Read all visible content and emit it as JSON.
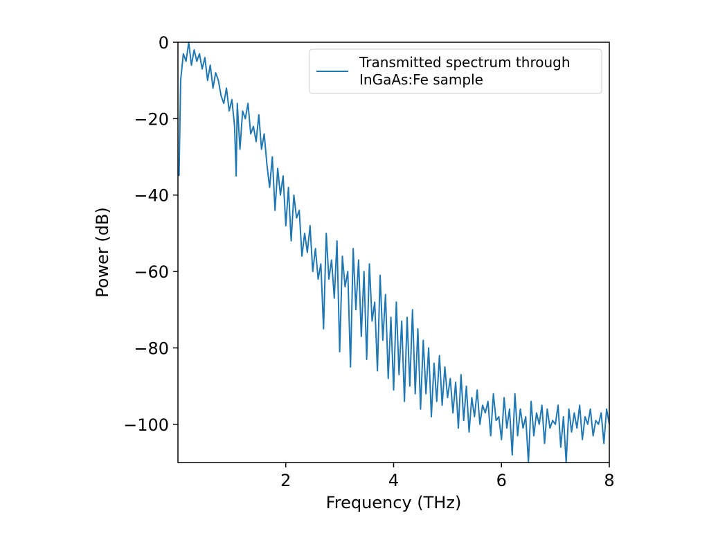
{
  "chart_data": {
    "type": "line",
    "title": "",
    "xlabel": "Frequency (THz)",
    "ylabel": "Power (dB)",
    "xlim": [
      0.0,
      8.0
    ],
    "ylim": [
      -110,
      0
    ],
    "x_ticks": [
      2,
      4,
      6,
      8
    ],
    "x_tick_labels": [
      "2",
      "4",
      "6",
      "8"
    ],
    "y_ticks": [
      0,
      -20,
      -40,
      -60,
      -80,
      -100
    ],
    "y_tick_labels": [
      "0",
      "−20",
      "−40",
      "−60",
      "−80",
      "−100"
    ],
    "grid": false,
    "legend_position": "top-right",
    "colors": {
      "series": "#1f77b4",
      "axes": "#000000"
    },
    "series": [
      {
        "name": "Transmitted spectrum through\nInGaAs:Fe sample",
        "x": [
          0.02,
          0.05,
          0.1,
          0.15,
          0.2,
          0.25,
          0.3,
          0.35,
          0.4,
          0.45,
          0.5,
          0.55,
          0.6,
          0.65,
          0.7,
          0.75,
          0.8,
          0.85,
          0.9,
          0.95,
          1.0,
          1.05,
          1.08,
          1.1,
          1.15,
          1.2,
          1.25,
          1.3,
          1.35,
          1.4,
          1.45,
          1.5,
          1.55,
          1.6,
          1.65,
          1.7,
          1.75,
          1.8,
          1.85,
          1.9,
          1.95,
          2.0,
          2.05,
          2.1,
          2.15,
          2.2,
          2.25,
          2.3,
          2.35,
          2.4,
          2.45,
          2.5,
          2.55,
          2.6,
          2.65,
          2.7,
          2.75,
          2.8,
          2.85,
          2.9,
          2.95,
          3.0,
          3.05,
          3.1,
          3.15,
          3.2,
          3.25,
          3.3,
          3.35,
          3.4,
          3.45,
          3.5,
          3.55,
          3.6,
          3.65,
          3.7,
          3.75,
          3.8,
          3.85,
          3.9,
          3.95,
          4.0,
          4.05,
          4.1,
          4.15,
          4.2,
          4.25,
          4.3,
          4.35,
          4.4,
          4.45,
          4.5,
          4.55,
          4.6,
          4.65,
          4.7,
          4.75,
          4.8,
          4.85,
          4.9,
          4.95,
          5.0,
          5.05,
          5.1,
          5.15,
          5.2,
          5.25,
          5.3,
          5.35,
          5.4,
          5.45,
          5.5,
          5.55,
          5.6,
          5.65,
          5.7,
          5.75,
          5.8,
          5.85,
          5.9,
          5.95,
          6.0,
          6.05,
          6.1,
          6.15,
          6.2,
          6.25,
          6.3,
          6.35,
          6.4,
          6.45,
          6.5,
          6.55,
          6.6,
          6.65,
          6.7,
          6.75,
          6.8,
          6.85,
          6.9,
          6.95,
          7.0,
          7.05,
          7.1,
          7.15,
          7.2,
          7.25,
          7.3,
          7.35,
          7.4,
          7.45,
          7.5,
          7.55,
          7.6,
          7.65,
          7.7,
          7.75,
          7.8,
          7.85,
          7.9,
          7.95,
          8.0
        ],
        "y": [
          -35,
          -10,
          -3,
          -5,
          0,
          -6,
          -2,
          -5,
          -3,
          -7,
          -4,
          -10,
          -6,
          -12,
          -8,
          -10,
          -14,
          -16,
          -12,
          -18,
          -15,
          -22,
          -35,
          -16,
          -28,
          -18,
          -20,
          -16,
          -24,
          -22,
          -26,
          -19,
          -28,
          -24,
          -32,
          -38,
          -30,
          -44,
          -33,
          -40,
          -35,
          -48,
          -38,
          -52,
          -40,
          -46,
          -44,
          -56,
          -50,
          -55,
          -48,
          -60,
          -54,
          -62,
          -58,
          -75,
          -50,
          -62,
          -57,
          -67,
          -52,
          -81,
          -56,
          -64,
          -60,
          -85,
          -54,
          -70,
          -57,
          -77,
          -60,
          -83,
          -58,
          -73,
          -68,
          -86,
          -61,
          -78,
          -66,
          -88,
          -72,
          -91,
          -68,
          -87,
          -73,
          -94,
          -72,
          -90,
          -70,
          -92,
          -75,
          -96,
          -78,
          -92,
          -80,
          -98,
          -84,
          -94,
          -82,
          -95,
          -85,
          -93,
          -88,
          -97,
          -89,
          -101,
          -87,
          -99,
          -90,
          -102,
          -93,
          -98,
          -91,
          -100,
          -95,
          -97,
          -94,
          -103,
          -92,
          -99,
          -98,
          -104,
          -93,
          -101,
          -96,
          -108,
          -92,
          -103,
          -96,
          -101,
          -98,
          -110,
          -94,
          -103,
          -97,
          -100,
          -95,
          -105,
          -96,
          -101,
          -99,
          -100,
          -95,
          -106,
          -98,
          -110,
          -96,
          -102,
          -97,
          -101,
          -95,
          -104,
          -98,
          -100,
          -96,
          -103,
          -99,
          -100,
          -97,
          -105,
          -96,
          -100
        ]
      }
    ]
  }
}
